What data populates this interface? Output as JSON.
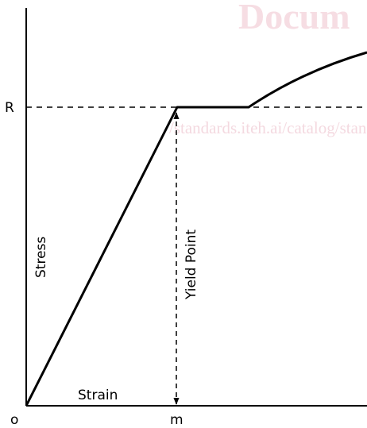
{
  "watermark": {
    "title": "Docum",
    "url": "/standards.iteh.ai/catalog/standards/sis",
    "color": "#e8b4c0"
  },
  "axes": {
    "y_label": "Stress",
    "x_label": "Strain",
    "origin_label": "o",
    "y_tick_label": "R",
    "x_tick_label": "m"
  },
  "annotation": {
    "yield_label": "Yield Point"
  },
  "colors": {
    "curve": "#000000",
    "axes": "#000000"
  }
}
